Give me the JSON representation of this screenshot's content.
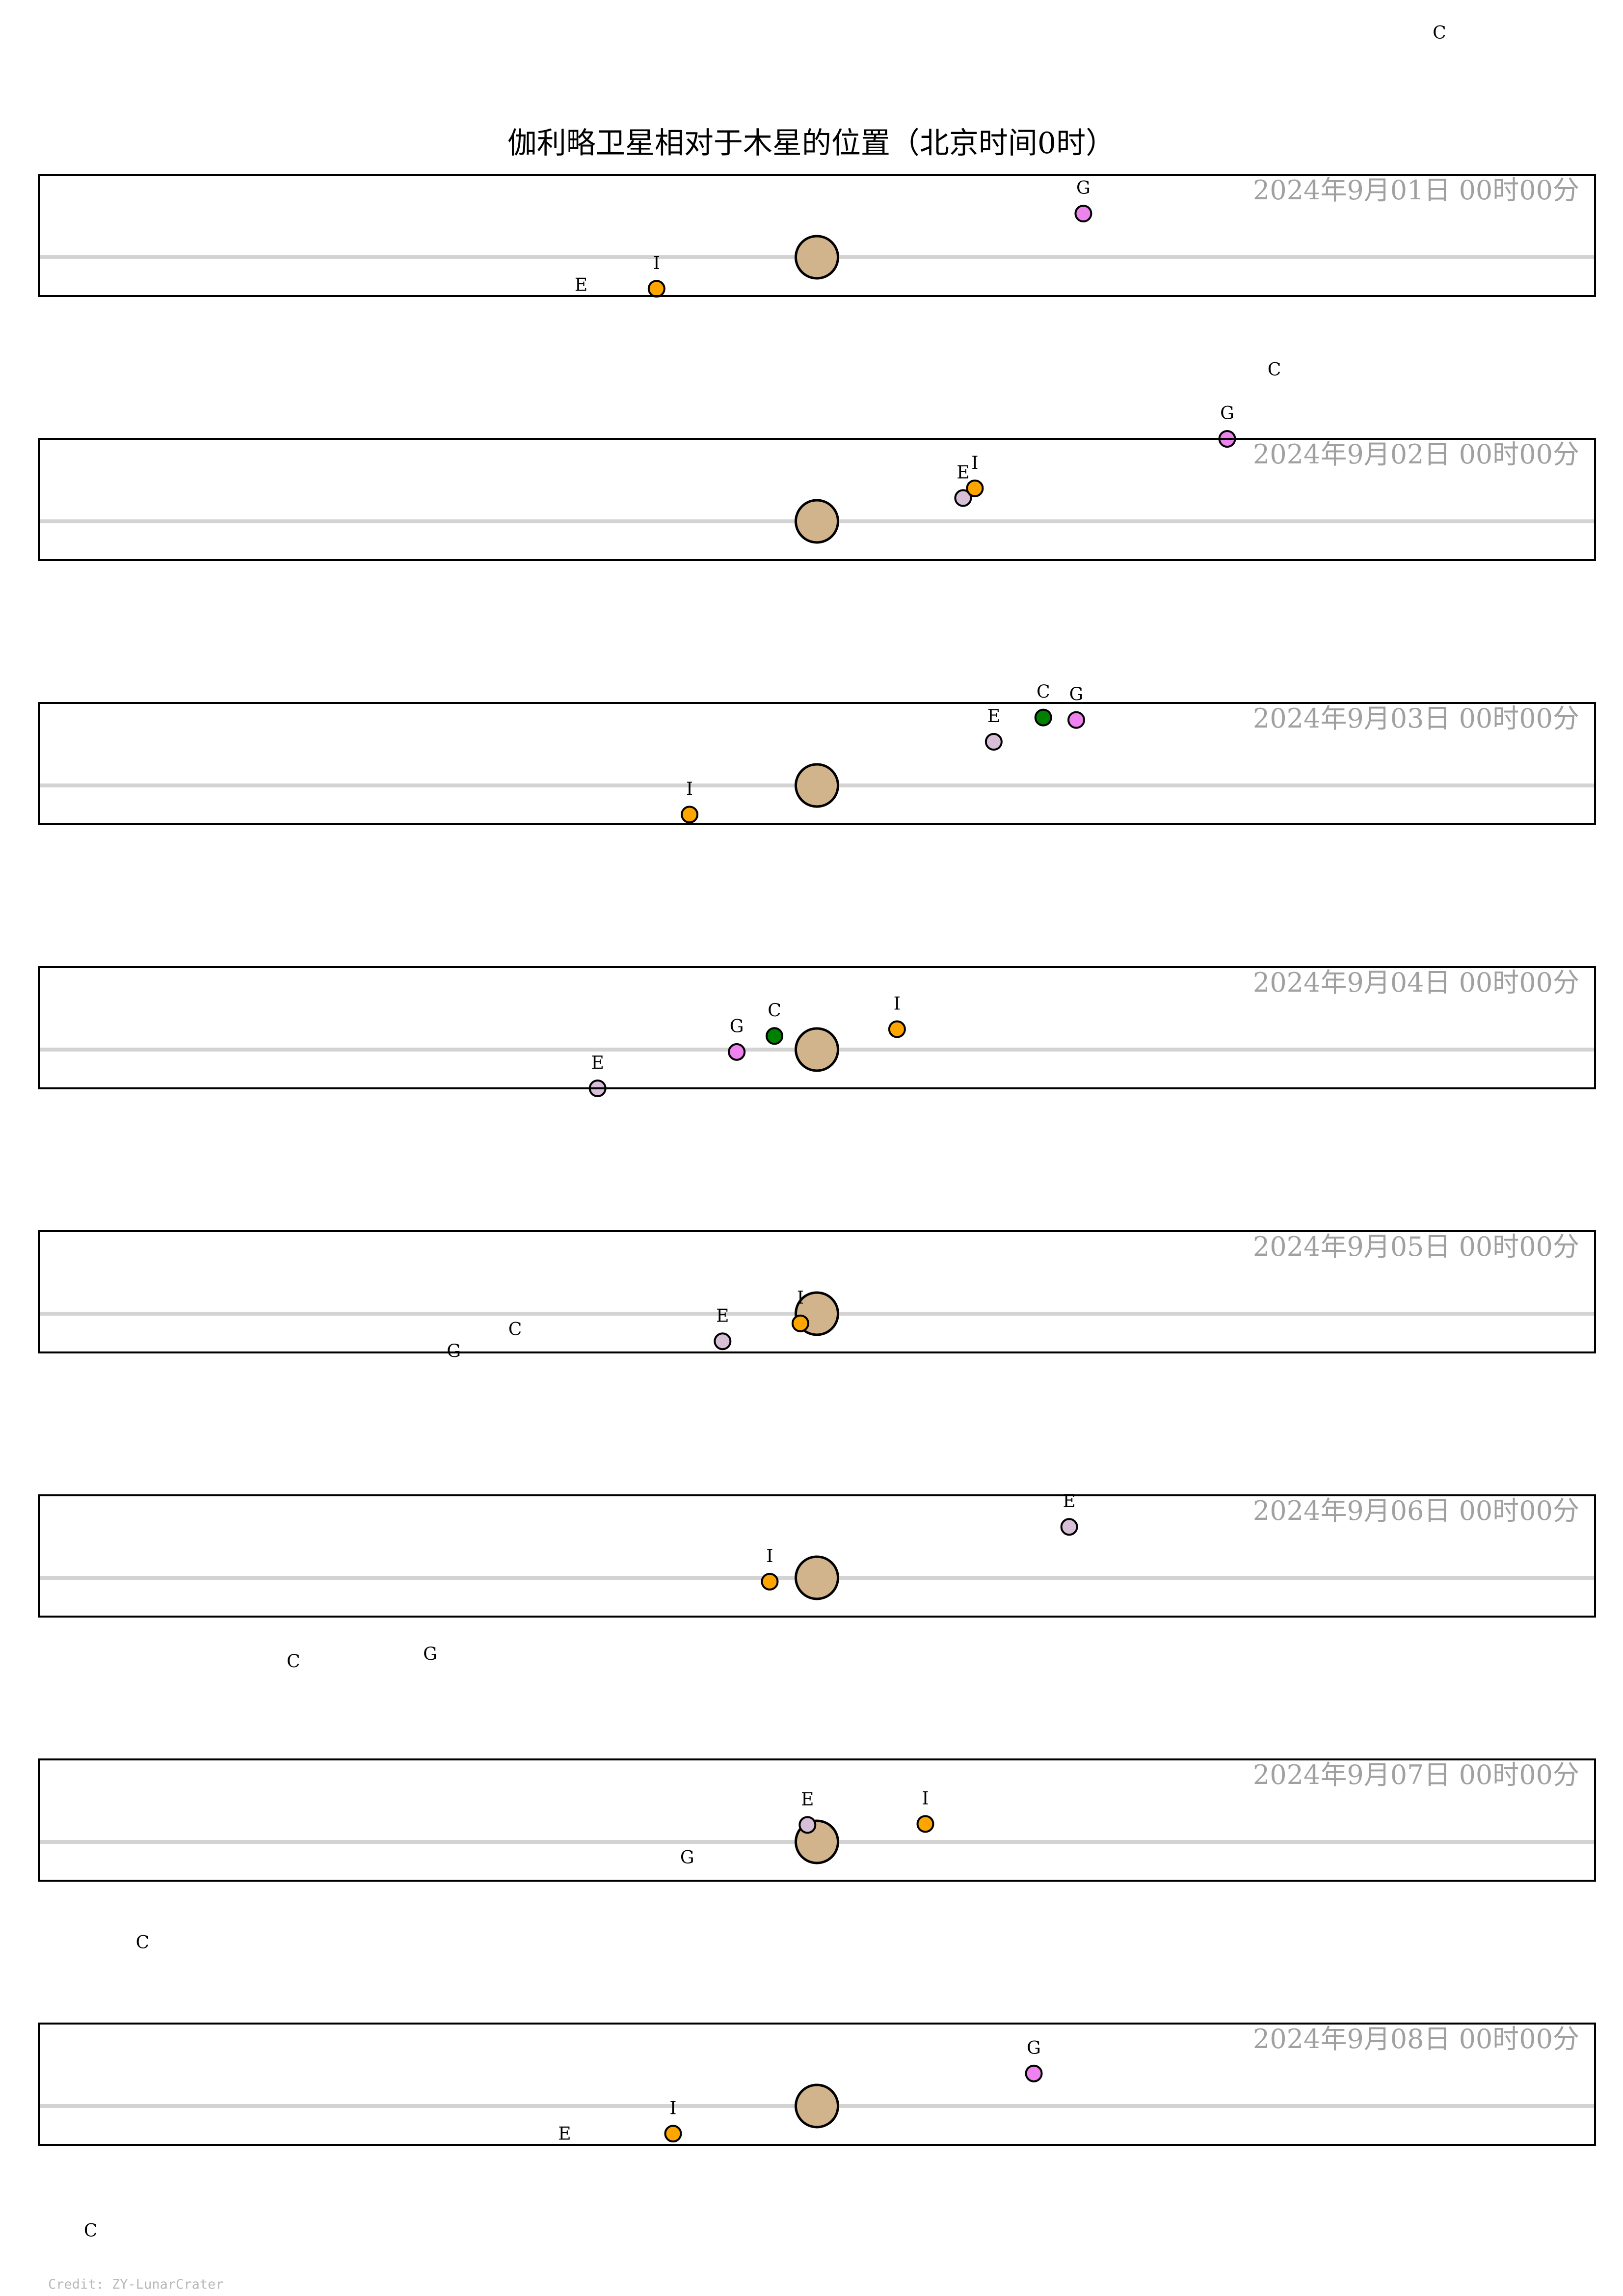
{
  "chart_data": {
    "type": "scatter",
    "title": "伽利略卫星相对于木星的位置（北京时间0时）",
    "credit": "Credit: ZY-LunarCrater",
    "xlim": [
      -16.5,
      16.5
    ],
    "ylim": [
      -0.8,
      1.7
    ],
    "colors": {
      "jupiter": "#d2b48c",
      "io": "#ffa500",
      "europa": "#d8bfd8",
      "ganymede": "#ee82ee",
      "callisto": "#008000",
      "equator": "#d3d3d3",
      "frame": "#000000"
    },
    "panels": [
      {
        "date": "2024年9月01日  00时00分",
        "moons": [
          {
            "label": "I",
            "color": "io",
            "x": -3.4,
            "y": -0.65
          },
          {
            "label": "E",
            "color": "europa",
            "x": -5.0,
            "y": -1.1
          },
          {
            "label": "G",
            "color": "ganymede",
            "x": 5.65,
            "y": 0.9
          },
          {
            "label": "C",
            "color": "callisto",
            "x": 13.2,
            "y": 4.1
          }
        ]
      },
      {
        "date": "2024年9月02日  00时00分",
        "moons": [
          {
            "label": "E",
            "color": "europa",
            "x": 3.1,
            "y": 0.48
          },
          {
            "label": "I",
            "color": "io",
            "x": 3.35,
            "y": 0.68
          },
          {
            "label": "G",
            "color": "ganymede",
            "x": 8.7,
            "y": 1.7
          },
          {
            "label": "C",
            "color": "callisto",
            "x": 9.7,
            "y": 2.6
          }
        ]
      },
      {
        "date": "2024年9月03日  00时00分",
        "moons": [
          {
            "label": "I",
            "color": "io",
            "x": -2.7,
            "y": -0.6
          },
          {
            "label": "E",
            "color": "europa",
            "x": 3.75,
            "y": 0.9
          },
          {
            "label": "C",
            "color": "callisto",
            "x": 4.8,
            "y": 1.4
          },
          {
            "label": "G",
            "color": "ganymede",
            "x": 5.5,
            "y": 1.35
          }
        ]
      },
      {
        "date": "2024年9月04日  00时00分",
        "moons": [
          {
            "label": "G",
            "color": "ganymede",
            "x": -1.7,
            "y": -0.05
          },
          {
            "label": "C",
            "color": "callisto",
            "x": -0.9,
            "y": 0.28
          },
          {
            "label": "I",
            "color": "io",
            "x": 1.7,
            "y": 0.42
          },
          {
            "label": "E",
            "color": "europa",
            "x": -4.65,
            "y": -0.8
          }
        ]
      },
      {
        "date": "2024年9月05日  00时00分",
        "moons": [
          {
            "label": "E",
            "color": "europa",
            "x": -2.0,
            "y": -0.57
          },
          {
            "label": "I",
            "color": "io",
            "x": -0.35,
            "y": -0.2
          },
          {
            "label": "C",
            "color": "callisto",
            "x": -6.4,
            "y": -0.85
          },
          {
            "label": "G",
            "color": "ganymede",
            "x": -7.7,
            "y": -1.3
          }
        ]
      },
      {
        "date": "2024年9月06日  00时00分",
        "moons": [
          {
            "label": "I",
            "color": "io",
            "x": -1.0,
            "y": -0.08
          },
          {
            "label": "E",
            "color": "europa",
            "x": 5.35,
            "y": 1.05
          },
          {
            "label": "G",
            "color": "ganymede",
            "x": -8.2,
            "y": -2.1
          },
          {
            "label": "C",
            "color": "callisto",
            "x": -11.1,
            "y": -2.25
          }
        ]
      },
      {
        "date": "2024年9月07日  00时00分",
        "moons": [
          {
            "label": "E",
            "color": "europa",
            "x": -0.2,
            "y": 0.35
          },
          {
            "label": "I",
            "color": "io",
            "x": 2.3,
            "y": 0.37
          },
          {
            "label": "G",
            "color": "ganymede",
            "x": -2.75,
            "y": -0.85
          },
          {
            "label": "C",
            "color": "callisto",
            "x": -14.3,
            "y": -2.6
          }
        ]
      },
      {
        "date": "2024年9月08日  00时00分",
        "moons": [
          {
            "label": "I",
            "color": "io",
            "x": -3.05,
            "y": -0.57
          },
          {
            "label": "E",
            "color": "europa",
            "x": -5.35,
            "y": -1.1
          },
          {
            "label": "G",
            "color": "ganymede",
            "x": 4.6,
            "y": 0.67
          },
          {
            "label": "C",
            "color": "callisto",
            "x": -15.4,
            "y": -3.1
          }
        ]
      }
    ]
  }
}
